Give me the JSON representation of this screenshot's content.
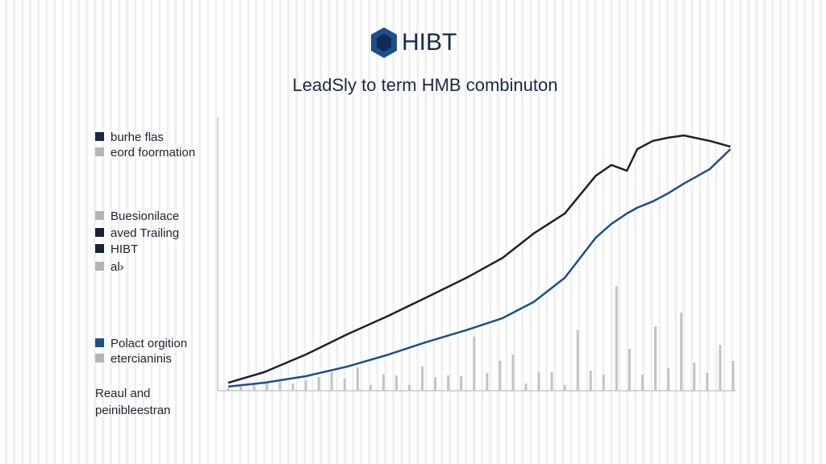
{
  "chart_data": {
    "type": "line",
    "logo_text": "HIBT",
    "title": "LeadSly to term HMB combinuton",
    "xlim": [
      0,
      100
    ],
    "ylim": [
      0,
      100
    ],
    "x": [
      2,
      9,
      17,
      25,
      33,
      40,
      48,
      55,
      61,
      67,
      73,
      76,
      79,
      81,
      84,
      87,
      90,
      95,
      99
    ],
    "series": [
      {
        "color": "#1a2333",
        "values": [
          2.9,
          6.8,
          13.2,
          20.6,
          27.4,
          33.8,
          41.2,
          48.5,
          57.4,
          64.7,
          78.5,
          82.4,
          80.3,
          88.2,
          91.2,
          92.4,
          93.2,
          91.2,
          89.1
        ]
      },
      {
        "color": "#1f4f8a",
        "values": [
          1.5,
          2.9,
          5.3,
          8.8,
          13.2,
          17.6,
          22.1,
          26.5,
          32.4,
          41.2,
          55.9,
          60.9,
          64.7,
          66.8,
          69.1,
          72.1,
          75.6,
          80.9,
          88.2
        ]
      }
    ],
    "bars": {
      "color": "#c4c4c4",
      "x": [
        2,
        4.5,
        7,
        9.5,
        12,
        14.5,
        17,
        19.5,
        22,
        24.5,
        27,
        29.5,
        32,
        34.5,
        37,
        39.5,
        42,
        44.5,
        47,
        49.5,
        52,
        54.5,
        57,
        59.5,
        62,
        64.5,
        67,
        69.5,
        72,
        74.5,
        77,
        79.5,
        82,
        84.5,
        87,
        89.5,
        92,
        94.5,
        97,
        99.5
      ],
      "values": [
        0.9,
        1.5,
        2.1,
        2.6,
        3.2,
        2.6,
        3.8,
        5,
        6.8,
        4.4,
        8.5,
        2.1,
        5.9,
        5.6,
        2.1,
        8.8,
        5,
        5.6,
        5.3,
        19.7,
        6.5,
        10.9,
        13.2,
        2.6,
        6.8,
        6.8,
        2.1,
        22.1,
        7.4,
        5.9,
        38.2,
        15.3,
        5.9,
        23.5,
        8.2,
        28.5,
        10.3,
        6.5,
        16.8,
        10.9
      ]
    },
    "legend_items": [
      {
        "label": "burhe flas",
        "color": "#1a2a44"
      },
      {
        "label": "eord foormation",
        "color": "#b5b5b5"
      },
      {
        "label": "Buesionilace",
        "color": "#b5b5b5"
      },
      {
        "label": "aved Trailing",
        "color": "#1a2333"
      },
      {
        "label": "HIBT",
        "color": "#1a2333"
      },
      {
        "label": "al›",
        "color": "#b5b5b5"
      },
      {
        "label": "Polact orgition",
        "color": "#1f4f8a"
      },
      {
        "label": "etercianinis",
        "color": "#b5b5b5"
      }
    ],
    "notes": [
      "Reaul and",
      "peinibleestran"
    ]
  }
}
